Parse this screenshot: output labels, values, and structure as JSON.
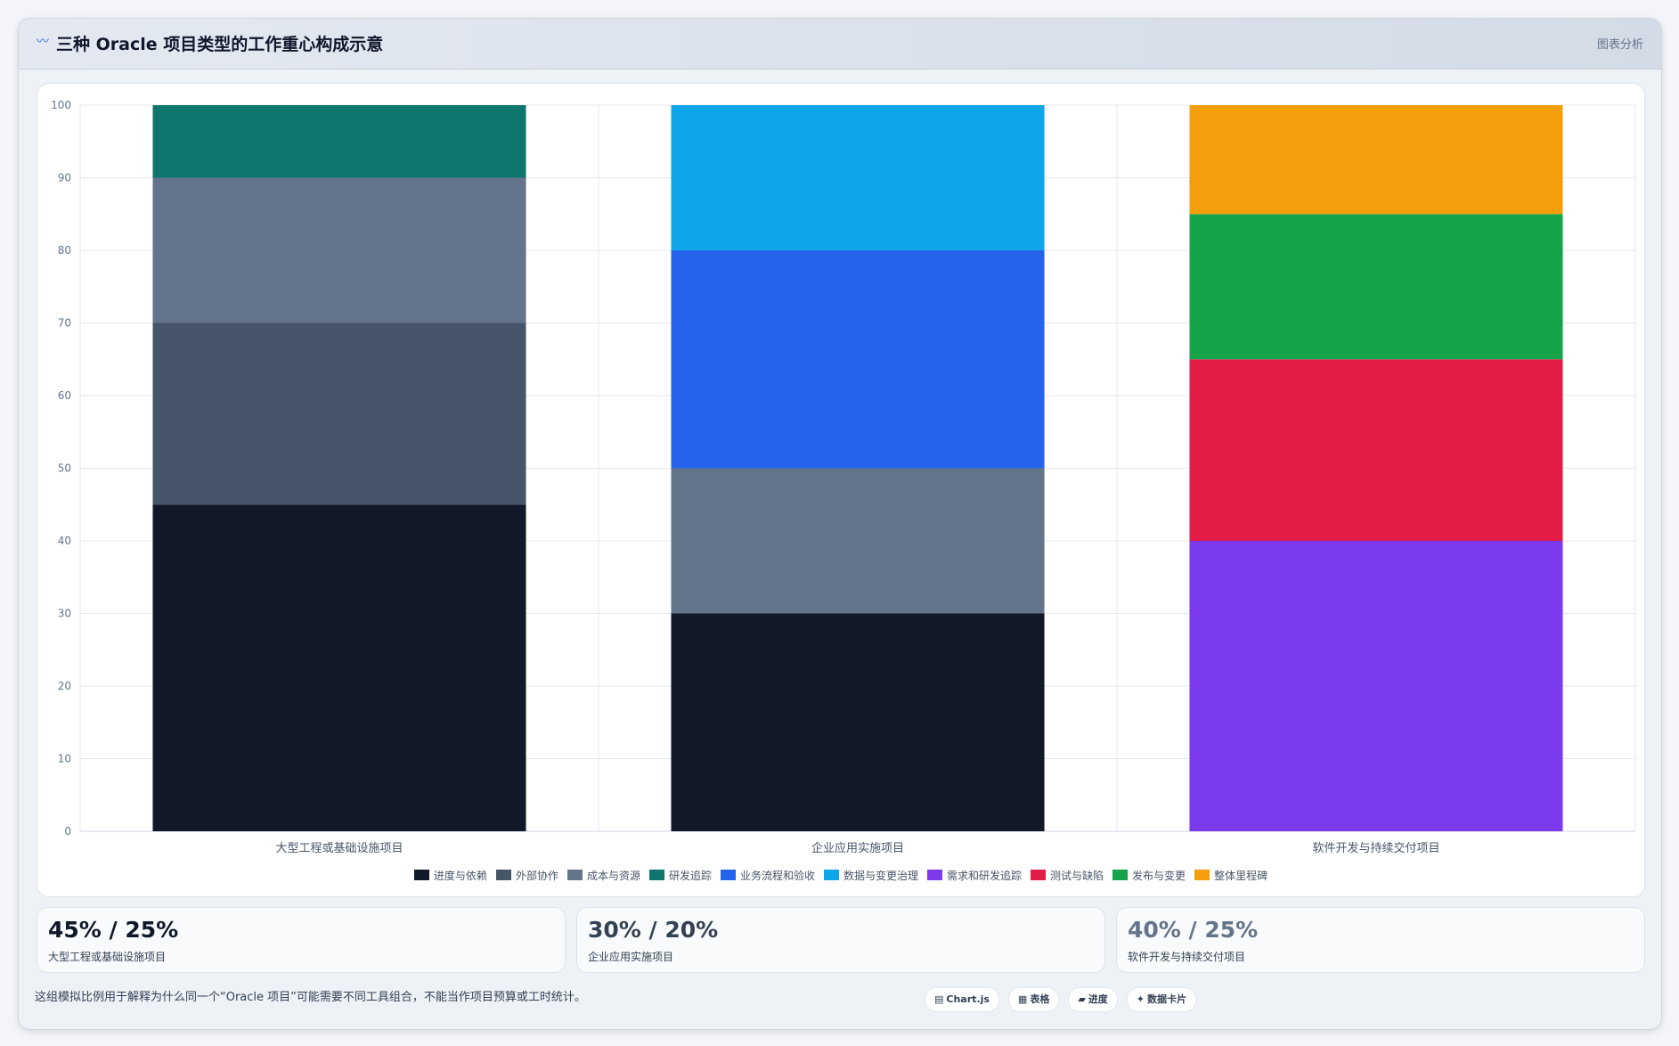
{
  "header": {
    "title": "三种 Oracle 项目类型的工作重心构成示意",
    "action_label": "图表分析",
    "icon": "wave-icon"
  },
  "chart_data": {
    "type": "bar",
    "stacked": true,
    "categories": [
      "大型工程或基础设施项目",
      "企业应用实施项目",
      "软件开发与持续交付项目"
    ],
    "ylim": [
      0,
      100
    ],
    "yticks": [
      0,
      10,
      20,
      30,
      40,
      50,
      60,
      70,
      80,
      90,
      100
    ],
    "grid": true,
    "legend_position": "bottom",
    "series": [
      {
        "name": "进度与依赖",
        "color": "#111827",
        "values": [
          45,
          30,
          0
        ]
      },
      {
        "name": "外部协作",
        "color": "#475569",
        "values": [
          25,
          0,
          0
        ]
      },
      {
        "name": "成本与资源",
        "color": "#64748b",
        "values": [
          20,
          20,
          0
        ]
      },
      {
        "name": "研发追踪",
        "color": "#0f766e",
        "values": [
          10,
          0,
          0
        ]
      },
      {
        "name": "业务流程和验收",
        "color": "#2563eb",
        "values": [
          0,
          30,
          0
        ]
      },
      {
        "name": "数据与变更治理",
        "color": "#0ea5e9",
        "values": [
          0,
          20,
          0
        ]
      },
      {
        "name": "需求和研发追踪",
        "color": "#7c3aed",
        "values": [
          0,
          0,
          40
        ]
      },
      {
        "name": "测试与缺陷",
        "color": "#e11d48",
        "values": [
          0,
          0,
          25
        ]
      },
      {
        "name": "发布与变更",
        "color": "#16a34a",
        "values": [
          0,
          0,
          20
        ]
      },
      {
        "name": "整体里程碑",
        "color": "#f59e0b",
        "values": [
          0,
          0,
          15
        ]
      }
    ]
  },
  "stats": [
    {
      "value": "45% / 25%",
      "label": "大型工程或基础设施项目",
      "color": "#0f172a"
    },
    {
      "value": "30% / 20%",
      "label": "企业应用实施项目",
      "color": "#334155"
    },
    {
      "value": "40% / 25%",
      "label": "软件开发与持续交付项目",
      "color": "#64748b"
    }
  ],
  "footnote": "这组模拟比例用于解释为什么同一个“Oracle 项目”可能需要不同工具组合，不能当作项目预算或工时统计。",
  "tags": [
    {
      "label": "Chart.js",
      "icon": "chart-icon",
      "glyph": "▤"
    },
    {
      "label": "表格",
      "icon": "table-icon",
      "glyph": "▦"
    },
    {
      "label": "进度",
      "icon": "progress-icon",
      "glyph": "▰"
    },
    {
      "label": "数据卡片",
      "icon": "card-icon",
      "glyph": "✦"
    }
  ]
}
